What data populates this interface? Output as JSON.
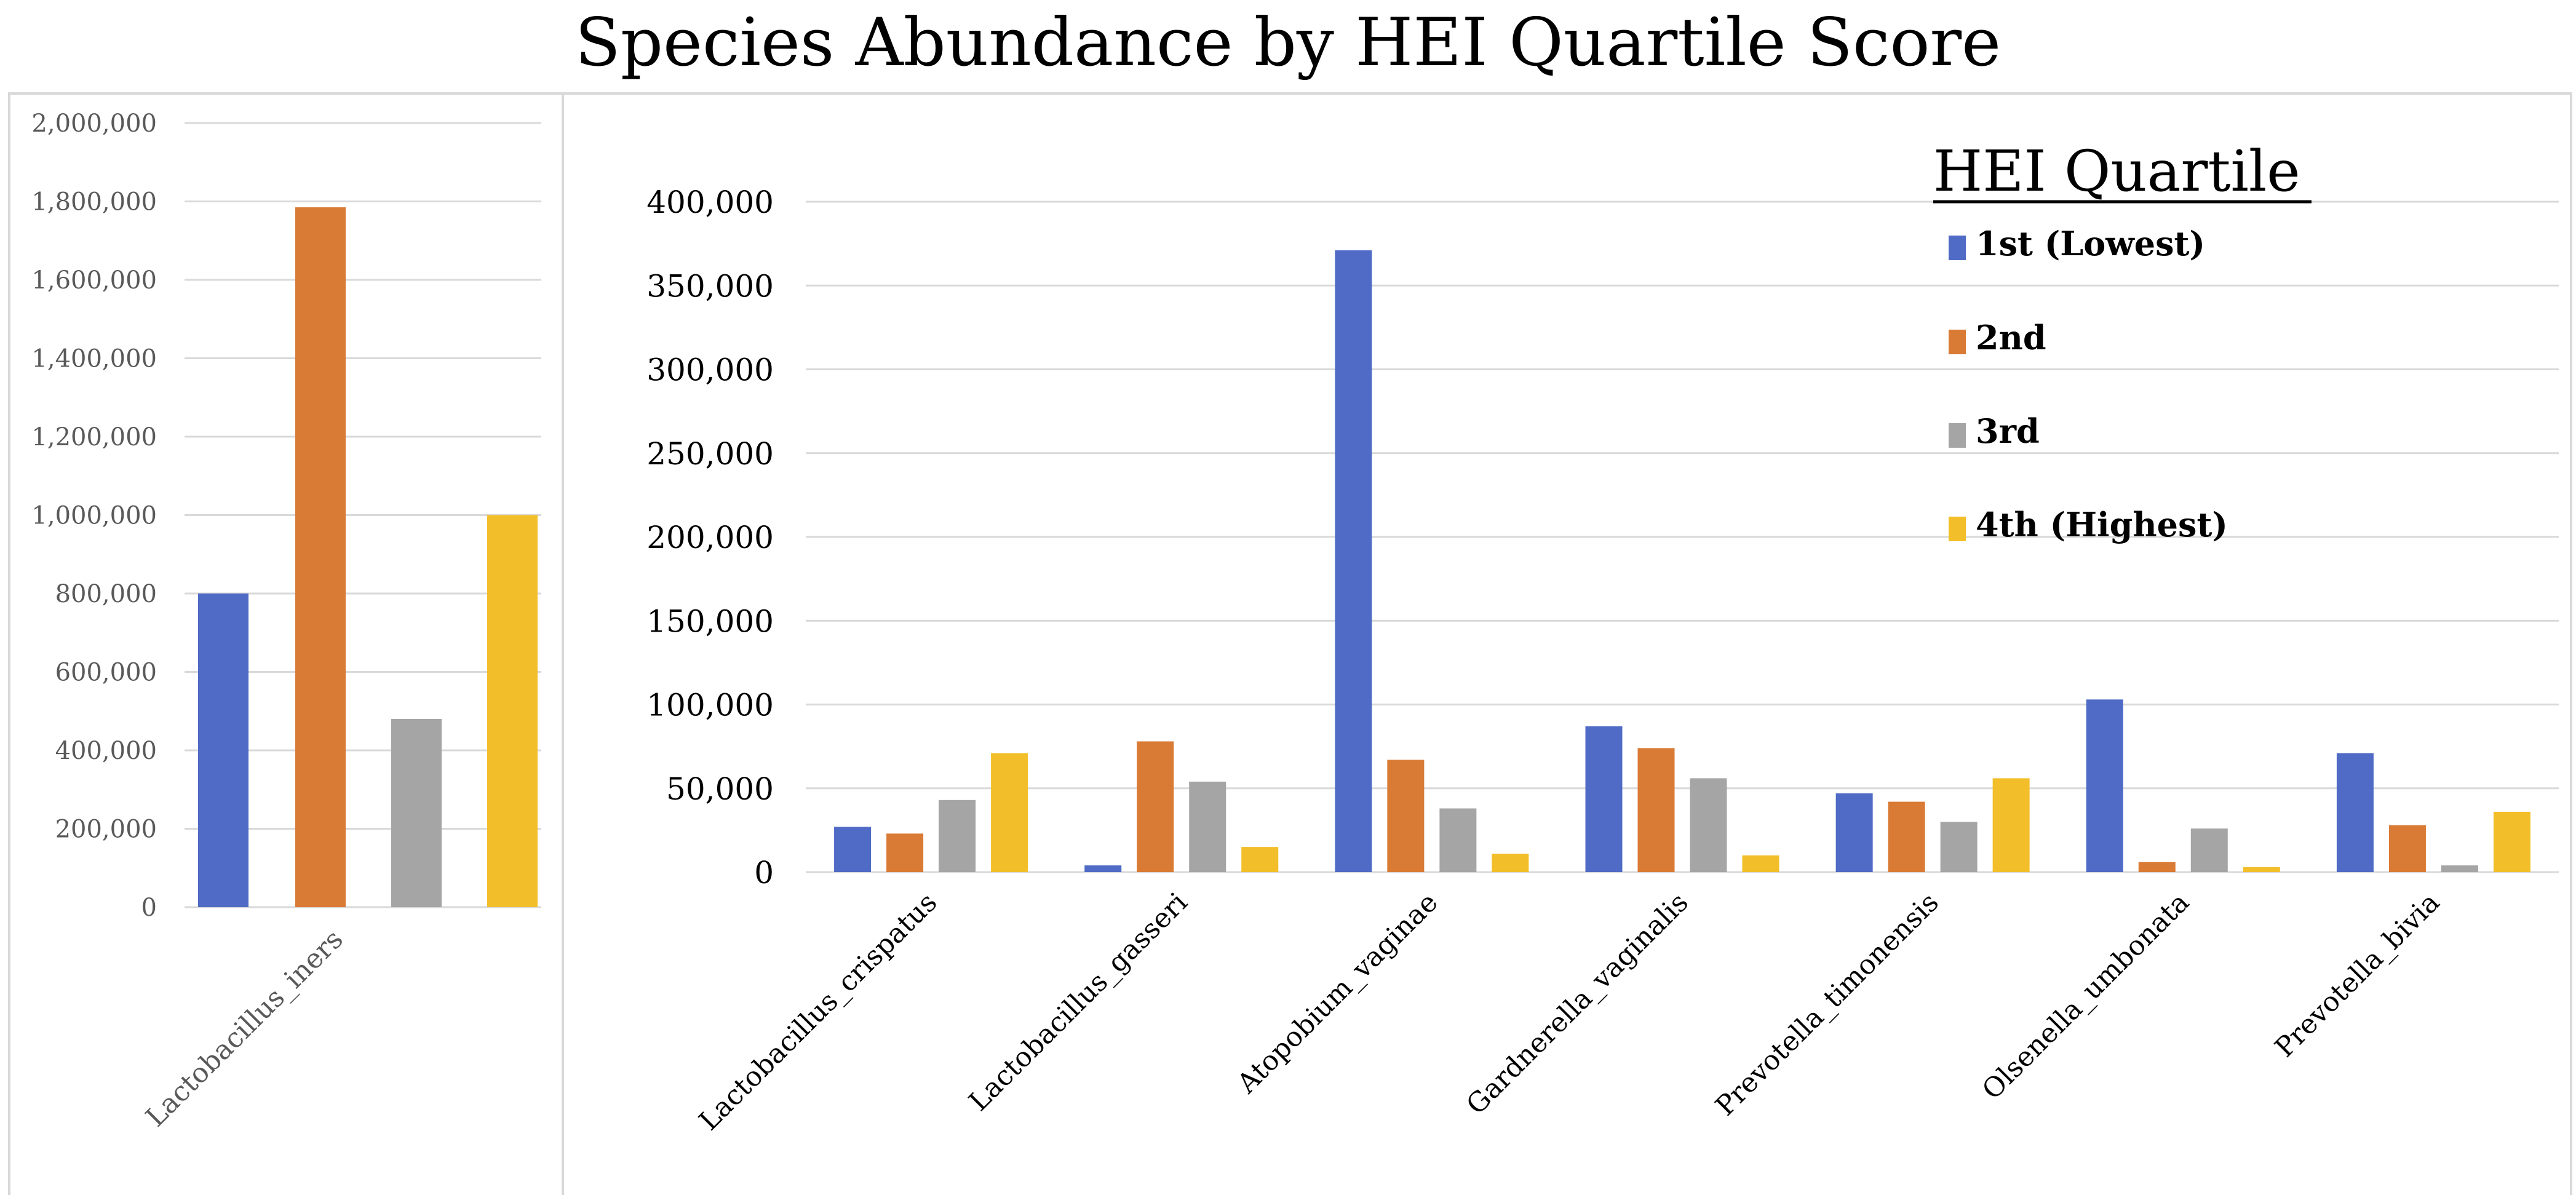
{
  "title": "Species Abundance by HEI Quartile Score",
  "colors": {
    "q1": "#4F6BC5",
    "q2": "#D97A35",
    "q3": "#A5A5A5",
    "q4": "#F2BF2A",
    "grid": "#D9D9D9",
    "border": "#D9D9D9"
  },
  "chart_data": [
    {
      "type": "bar",
      "panel": "left",
      "categories": [
        "Lactobacillus_iners"
      ],
      "series": [
        {
          "name": "1st (Lowest)",
          "values": [
            800000
          ]
        },
        {
          "name": "2nd",
          "values": [
            1785000
          ]
        },
        {
          "name": "3rd",
          "values": [
            480000
          ]
        },
        {
          "name": "4th (Highest)",
          "values": [
            1000000
          ]
        }
      ],
      "ylim": [
        0,
        2000000
      ],
      "yticks": [
        0,
        200000,
        400000,
        600000,
        800000,
        1000000,
        1200000,
        1400000,
        1600000,
        1800000,
        2000000
      ],
      "ytick_labels": [
        "0",
        "200,000",
        "400,000",
        "600,000",
        "800,000",
        "1,000,000",
        "1,200,000",
        "1,400,000",
        "1,600,000",
        "1,800,000",
        "2,000,000"
      ],
      "grid": true
    },
    {
      "type": "bar",
      "panel": "right",
      "categories": [
        "Lactobacillus_crispatus",
        "Lactobacillus_gasseri",
        "Atopobium_vaginae",
        "Gardnerella_vaginalis",
        "Prevotella_timonensis",
        "Olsenella_umbonata",
        "Prevotella_bivia"
      ],
      "series": [
        {
          "name": "1st (Lowest)",
          "values": [
            27000,
            4000,
            371000,
            87000,
            47000,
            103000,
            71000
          ]
        },
        {
          "name": "2nd",
          "values": [
            23000,
            78000,
            67000,
            74000,
            42000,
            6000,
            28000
          ]
        },
        {
          "name": "3rd",
          "values": [
            43000,
            54000,
            38000,
            56000,
            30000,
            26000,
            4000
          ]
        },
        {
          "name": "4th (Highest)",
          "values": [
            71000,
            15000,
            11000,
            10000,
            56000,
            3000,
            36000
          ]
        }
      ],
      "ylim": [
        0,
        400000
      ],
      "yticks": [
        0,
        50000,
        100000,
        150000,
        200000,
        250000,
        300000,
        350000,
        400000
      ],
      "ytick_labels": [
        "0",
        "50,000",
        "100,000",
        "150,000",
        "200,000",
        "250,000",
        "300,000",
        "350,000",
        "400,000"
      ],
      "grid": true,
      "legend": {
        "title": "HEI Quartile",
        "entries": [
          "1st (Lowest)",
          "2nd",
          "3rd",
          "4th (Highest)"
        ],
        "position": "top-right"
      }
    }
  ]
}
